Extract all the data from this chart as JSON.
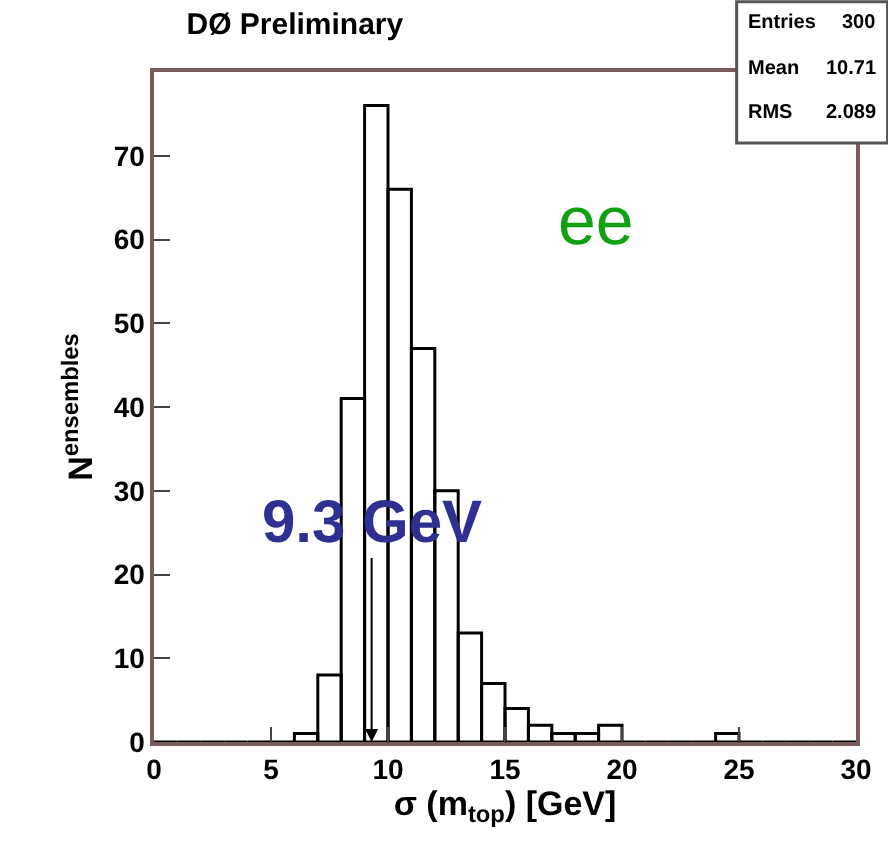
{
  "chart_data": {
    "type": "histogram",
    "title": "DØ Preliminary",
    "xlabel": "σ (m$_{top}$) [GeV]",
    "ylabel": "N$^{ensembles}$",
    "bins": [
      0,
      1,
      2,
      3,
      4,
      5,
      6,
      7,
      8,
      9,
      10,
      11,
      12,
      13,
      14,
      15,
      16,
      17,
      18,
      19,
      20,
      21,
      22,
      23,
      24,
      25,
      26,
      27,
      28,
      29,
      30
    ],
    "values": [
      0,
      0,
      0,
      0,
      0,
      0,
      1,
      8,
      41,
      76,
      66,
      47,
      30,
      13,
      7,
      4,
      2,
      1,
      1,
      2,
      0,
      0,
      0,
      0,
      1,
      0,
      0,
      0,
      0,
      0
    ],
    "color": "#000000",
    "xlim": [
      0,
      30
    ],
    "xticks": [
      0,
      5,
      10,
      15,
      20,
      25,
      30
    ],
    "ylim": [
      0,
      80
    ],
    "yticks": [
      0,
      10,
      20,
      30,
      40,
      50,
      60,
      70
    ],
    "grid": false,
    "legend": false,
    "annotations": [
      {
        "text": "9.3 GeV",
        "x": 9.3,
        "y": 0
      },
      "ee",
      "Entries 300",
      "Mean 10.71",
      "RMS 2.089"
    ]
  }
}
